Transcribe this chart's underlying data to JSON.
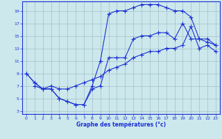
{
  "xlabel": "Graphe des températures (°c)",
  "bg_color": "#cce8ec",
  "grid_color": "#a0bfc8",
  "line_color": "#1a2fd4",
  "xlim": [
    -0.5,
    23.5
  ],
  "ylim": [
    2.5,
    20.5
  ],
  "xticks": [
    0,
    1,
    2,
    3,
    4,
    5,
    6,
    7,
    8,
    9,
    10,
    11,
    12,
    13,
    14,
    15,
    16,
    17,
    18,
    19,
    20,
    21,
    22,
    23
  ],
  "yticks": [
    3,
    5,
    7,
    9,
    11,
    13,
    15,
    17,
    19
  ],
  "line1_x": [
    0,
    1,
    2,
    3,
    4,
    5,
    6,
    7,
    8,
    9,
    10,
    11,
    12,
    13,
    14,
    15,
    16,
    17,
    18,
    19,
    20,
    21,
    22,
    23
  ],
  "line1_y": [
    9,
    7.5,
    6.5,
    6.5,
    5.0,
    4.5,
    4.0,
    4.0,
    6.5,
    7.0,
    11.5,
    11.5,
    11.5,
    14.5,
    15.0,
    15.0,
    15.5,
    15.5,
    14.5,
    17.0,
    14.5,
    14.5,
    14.0,
    13.5
  ],
  "line2_x": [
    0,
    1,
    2,
    3,
    4,
    5,
    6,
    7,
    8,
    9,
    10,
    11,
    12,
    13,
    14,
    15,
    16,
    17,
    18,
    19,
    20,
    21,
    22,
    23
  ],
  "line2_y": [
    9,
    7.5,
    6.5,
    6.5,
    5.0,
    4.5,
    4.0,
    4.0,
    7.0,
    11.0,
    18.5,
    19.0,
    19.0,
    19.5,
    20.0,
    20.0,
    20.0,
    19.5,
    19.0,
    19.0,
    18.0,
    14.5,
    14.5,
    13.5
  ],
  "line3_x": [
    1,
    2,
    3,
    4,
    5,
    6,
    7,
    8,
    9,
    10,
    11,
    12,
    13,
    14,
    15,
    16,
    17,
    18,
    19,
    20,
    21,
    22,
    23
  ],
  "line3_y": [
    7.0,
    6.5,
    7.0,
    6.5,
    6.5,
    7.0,
    7.5,
    8.0,
    8.5,
    9.5,
    10.0,
    10.5,
    11.5,
    12.0,
    12.5,
    12.5,
    13.0,
    13.0,
    13.5,
    16.5,
    13.0,
    13.5,
    12.5
  ]
}
